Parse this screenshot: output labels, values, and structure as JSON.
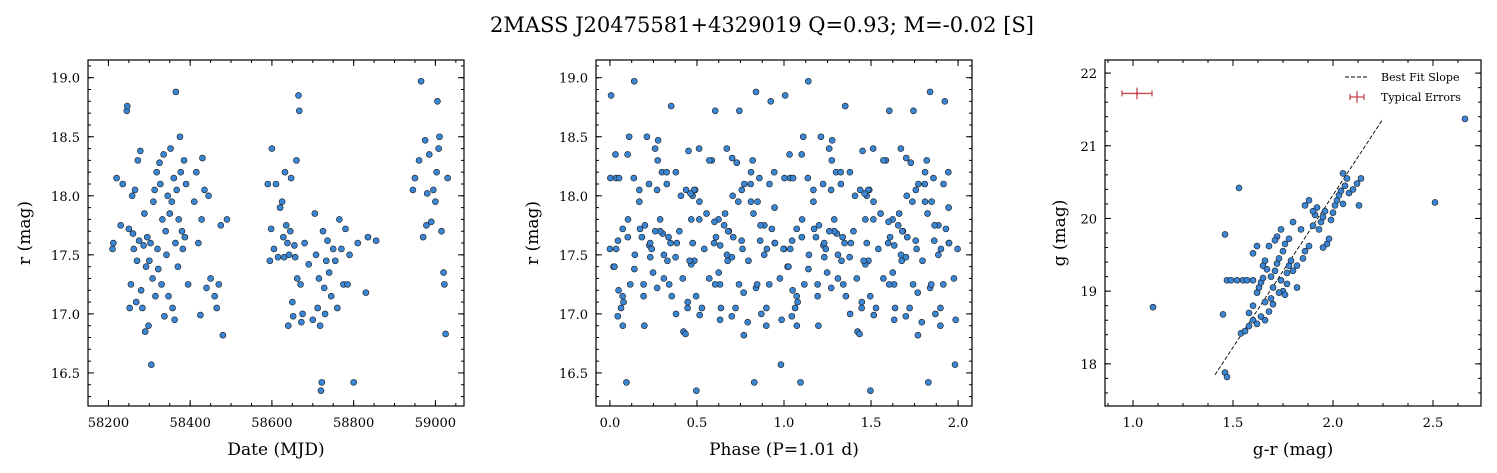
{
  "chart_data": {
    "title": "2MASS J20475581+4329019  Q=0.93; M=-0.02 [S]",
    "panels": [
      {
        "type": "scatter",
        "xlabel": "Date (MJD)",
        "ylabel": "r (mag)",
        "xlim": [
          58150,
          59070
        ],
        "ylim": [
          19.15,
          16.22
        ],
        "xticks": [
          58200,
          58400,
          58600,
          58800,
          59000
        ],
        "xtick_labels": [
          "58200",
          "58400",
          "58600",
          "58800",
          "59000"
        ],
        "yticks": [
          16.5,
          17.0,
          17.5,
          18.0,
          18.5,
          19.0
        ],
        "ytick_labels": [
          "16.5",
          "17.0",
          "17.5",
          "18.0",
          "18.5",
          "19.0"
        ],
        "points": [
          [
            58210,
            17.55
          ],
          [
            58212,
            17.6
          ],
          [
            58220,
            18.15
          ],
          [
            58230,
            17.75
          ],
          [
            58235,
            18.1
          ],
          [
            58245,
            18.72
          ],
          [
            58246,
            18.76
          ],
          [
            58250,
            17.72
          ],
          [
            58252,
            17.05
          ],
          [
            58255,
            17.25
          ],
          [
            58258,
            18.0
          ],
          [
            58260,
            17.68
          ],
          [
            58262,
            17.55
          ],
          [
            58265,
            18.05
          ],
          [
            58268,
            17.1
          ],
          [
            58270,
            17.45
          ],
          [
            58272,
            18.3
          ],
          [
            58275,
            17.62
          ],
          [
            58278,
            18.38
          ],
          [
            58280,
            17.2
          ],
          [
            58283,
            17.05
          ],
          [
            58286,
            17.58
          ],
          [
            58288,
            17.85
          ],
          [
            58290,
            16.85
          ],
          [
            58292,
            17.4
          ],
          [
            58295,
            17.65
          ],
          [
            58298,
            16.9
          ],
          [
            58300,
            17.45
          ],
          [
            58303,
            17.6
          ],
          [
            58305,
            16.57
          ],
          [
            58308,
            17.3
          ],
          [
            58310,
            17.95
          ],
          [
            58313,
            18.05
          ],
          [
            58315,
            17.15
          ],
          [
            58318,
            18.2
          ],
          [
            58320,
            17.55
          ],
          [
            58322,
            17.38
          ],
          [
            58325,
            18.28
          ],
          [
            58327,
            18.1
          ],
          [
            58330,
            17.25
          ],
          [
            58332,
            17.8
          ],
          [
            58335,
            18.35
          ],
          [
            58337,
            16.98
          ],
          [
            58340,
            17.7
          ],
          [
            58342,
            17.5
          ],
          [
            58345,
            18.0
          ],
          [
            58347,
            17.15
          ],
          [
            58350,
            17.85
          ],
          [
            58352,
            18.4
          ],
          [
            58355,
            17.95
          ],
          [
            58357,
            17.05
          ],
          [
            58360,
            18.15
          ],
          [
            58362,
            16.95
          ],
          [
            58364,
            17.6
          ],
          [
            58365,
            18.88
          ],
          [
            58367,
            18.05
          ],
          [
            58370,
            17.4
          ],
          [
            58372,
            17.8
          ],
          [
            58375,
            18.5
          ],
          [
            58377,
            18.2
          ],
          [
            58380,
            17.7
          ],
          [
            58382,
            17.55
          ],
          [
            58385,
            18.3
          ],
          [
            58387,
            17.65
          ],
          [
            58390,
            18.1
          ],
          [
            58395,
            17.25
          ],
          [
            58410,
            17.95
          ],
          [
            58415,
            18.2
          ],
          [
            58420,
            17.6
          ],
          [
            58425,
            16.99
          ],
          [
            58428,
            17.8
          ],
          [
            58430,
            18.32
          ],
          [
            58435,
            18.05
          ],
          [
            58440,
            17.22
          ],
          [
            58445,
            18.0
          ],
          [
            58450,
            17.3
          ],
          [
            58460,
            17.15
          ],
          [
            58465,
            17.05
          ],
          [
            58470,
            17.25
          ],
          [
            58475,
            17.75
          ],
          [
            58480,
            16.82
          ],
          [
            58490,
            17.8
          ],
          [
            58590,
            18.1
          ],
          [
            58595,
            17.45
          ],
          [
            58598,
            17.72
          ],
          [
            58600,
            18.4
          ],
          [
            58605,
            17.55
          ],
          [
            58610,
            18.1
          ],
          [
            58615,
            17.48
          ],
          [
            58620,
            17.9
          ],
          [
            58625,
            17.95
          ],
          [
            58628,
            17.65
          ],
          [
            58630,
            17.48
          ],
          [
            58632,
            18.2
          ],
          [
            58635,
            17.75
          ],
          [
            58638,
            17.6
          ],
          [
            58640,
            16.9
          ],
          [
            58642,
            17.5
          ],
          [
            58645,
            17.7
          ],
          [
            58647,
            18.15
          ],
          [
            58650,
            17.1
          ],
          [
            58652,
            16.98
          ],
          [
            58655,
            17.58
          ],
          [
            58657,
            17.48
          ],
          [
            58660,
            18.3
          ],
          [
            58662,
            17.3
          ],
          [
            58665,
            18.85
          ],
          [
            58667,
            18.72
          ],
          [
            58670,
            17.25
          ],
          [
            58672,
            16.93
          ],
          [
            58675,
            17.0
          ],
          [
            58680,
            17.6
          ],
          [
            58690,
            17.42
          ],
          [
            58700,
            16.95
          ],
          [
            58705,
            17.85
          ],
          [
            58708,
            17.5
          ],
          [
            58712,
            17.05
          ],
          [
            58715,
            17.3
          ],
          [
            58718,
            16.9
          ],
          [
            58720,
            16.35
          ],
          [
            58722,
            16.42
          ],
          [
            58725,
            17.7
          ],
          [
            58728,
            17.22
          ],
          [
            58730,
            17.0
          ],
          [
            58733,
            17.45
          ],
          [
            58736,
            17.62
          ],
          [
            58740,
            17.35
          ],
          [
            58745,
            17.15
          ],
          [
            58750,
            17.55
          ],
          [
            58755,
            17.45
          ],
          [
            58760,
            17.05
          ],
          [
            58765,
            17.8
          ],
          [
            58770,
            17.55
          ],
          [
            58775,
            17.25
          ],
          [
            58780,
            17.72
          ],
          [
            58785,
            17.25
          ],
          [
            58790,
            17.5
          ],
          [
            58800,
            16.42
          ],
          [
            58810,
            17.6
          ],
          [
            58830,
            17.18
          ],
          [
            58835,
            17.65
          ],
          [
            58855,
            17.62
          ],
          [
            58945,
            18.05
          ],
          [
            58950,
            18.15
          ],
          [
            58960,
            18.3
          ],
          [
            58965,
            18.97
          ],
          [
            58970,
            17.65
          ],
          [
            58975,
            18.47
          ],
          [
            58978,
            17.75
          ],
          [
            58980,
            18.02
          ],
          [
            58985,
            18.35
          ],
          [
            58990,
            17.78
          ],
          [
            58995,
            18.05
          ],
          [
            59000,
            17.95
          ],
          [
            59003,
            18.2
          ],
          [
            59005,
            18.8
          ],
          [
            59008,
            18.4
          ],
          [
            59010,
            18.5
          ],
          [
            59015,
            17.7
          ],
          [
            59020,
            17.35
          ],
          [
            59022,
            17.25
          ],
          [
            59025,
            16.83
          ],
          [
            59030,
            18.15
          ]
        ]
      },
      {
        "type": "scatter",
        "xlabel": "Phase (P=1.01 d)",
        "ylabel": "r (mag)",
        "xlim": [
          -0.08,
          2.08
        ],
        "ylim": [
          19.15,
          16.22
        ],
        "xticks": [
          0.0,
          0.5,
          1.0,
          1.5,
          2.0
        ],
        "xtick_labels": [
          "0.0",
          "0.5",
          "1.0",
          "1.5",
          "2.0"
        ],
        "yticks": [
          16.5,
          17.0,
          17.5,
          18.0,
          18.5,
          19.0
        ],
        "ytick_labels": [
          "16.5",
          "17.0",
          "17.5",
          "18.0",
          "18.5",
          "19.0"
        ],
        "points": []
      },
      {
        "type": "scatter",
        "xlabel": "g-r (mag)",
        "ylabel": "g (mag)",
        "xlim": [
          0.86,
          2.74
        ],
        "ylim": [
          22.18,
          17.42
        ],
        "xticks": [
          1.0,
          1.5,
          2.0,
          2.5
        ],
        "xtick_labels": [
          "1.0",
          "1.5",
          "2.0",
          "2.5"
        ],
        "yticks": [
          18,
          19,
          20,
          21,
          22
        ],
        "ytick_labels": [
          "18",
          "19",
          "20",
          "21",
          "22"
        ],
        "fit_line": [
          [
            1.41,
            17.85
          ],
          [
            2.25,
            21.37
          ]
        ],
        "typical_error": {
          "x": 1.02,
          "y": 21.72,
          "xerr": 0.075,
          "yerr": 0.08
        },
        "legend": [
          "Best Fit Slope",
          "Typical Errors"
        ],
        "points": [
          [
            1.46,
            17.88
          ],
          [
            1.47,
            17.82
          ],
          [
            1.1,
            18.78
          ],
          [
            1.45,
            18.68
          ],
          [
            1.46,
            19.78
          ],
          [
            1.47,
            19.15
          ],
          [
            1.49,
            19.15
          ],
          [
            1.52,
            19.15
          ],
          [
            1.53,
            20.42
          ],
          [
            1.55,
            19.15
          ],
          [
            1.57,
            19.15
          ],
          [
            1.6,
            19.15
          ],
          [
            1.54,
            18.42
          ],
          [
            1.56,
            18.45
          ],
          [
            1.58,
            18.52
          ],
          [
            1.6,
            18.6
          ],
          [
            1.62,
            18.55
          ],
          [
            1.64,
            18.65
          ],
          [
            1.66,
            18.6
          ],
          [
            1.6,
            18.8
          ],
          [
            1.62,
            18.98
          ],
          [
            1.63,
            19.05
          ],
          [
            1.64,
            19.12
          ],
          [
            1.65,
            19.18
          ],
          [
            1.65,
            19.35
          ],
          [
            1.66,
            19.42
          ],
          [
            1.67,
            19.3
          ],
          [
            1.68,
            18.72
          ],
          [
            1.69,
            18.9
          ],
          [
            1.7,
            19.05
          ],
          [
            1.71,
            19.28
          ],
          [
            1.72,
            19.38
          ],
          [
            1.73,
            19.45
          ],
          [
            1.74,
            19.15
          ],
          [
            1.75,
            19.0
          ],
          [
            1.76,
            18.95
          ],
          [
            1.77,
            19.25
          ],
          [
            1.78,
            19.35
          ],
          [
            1.79,
            19.42
          ],
          [
            1.7,
            18.82
          ],
          [
            1.72,
            19.75
          ],
          [
            1.74,
            19.85
          ],
          [
            1.75,
            19.55
          ],
          [
            1.76,
            19.65
          ],
          [
            1.78,
            19.72
          ],
          [
            1.8,
            19.28
          ],
          [
            1.82,
            19.35
          ],
          [
            1.84,
            19.85
          ],
          [
            1.85,
            19.45
          ],
          [
            1.86,
            19.55
          ],
          [
            1.88,
            19.62
          ],
          [
            1.9,
            19.9
          ],
          [
            1.91,
            20.05
          ],
          [
            1.92,
            20.15
          ],
          [
            1.93,
            19.85
          ],
          [
            1.94,
            19.95
          ],
          [
            1.95,
            20.02
          ],
          [
            1.96,
            20.1
          ],
          [
            1.97,
            19.65
          ],
          [
            1.98,
            19.72
          ],
          [
            1.99,
            19.98
          ],
          [
            2.0,
            20.08
          ],
          [
            2.01,
            20.18
          ],
          [
            2.02,
            20.25
          ],
          [
            2.03,
            20.32
          ],
          [
            2.04,
            20.38
          ],
          [
            2.05,
            20.2
          ],
          [
            2.06,
            20.45
          ],
          [
            2.07,
            20.55
          ],
          [
            2.08,
            20.35
          ],
          [
            2.1,
            20.4
          ],
          [
            2.12,
            20.48
          ],
          [
            2.13,
            20.18
          ],
          [
            2.14,
            20.55
          ],
          [
            1.86,
            20.18
          ],
          [
            1.88,
            20.25
          ],
          [
            1.9,
            20.1
          ],
          [
            1.8,
            19.95
          ],
          [
            1.82,
            19.05
          ],
          [
            1.95,
            19.6
          ],
          [
            2.05,
            20.62
          ],
          [
            1.6,
            19.52
          ],
          [
            1.62,
            19.62
          ],
          [
            1.68,
            19.62
          ],
          [
            1.71,
            19.7
          ],
          [
            1.58,
            18.7
          ],
          [
            1.66,
            18.85
          ],
          [
            1.69,
            19.2
          ],
          [
            1.73,
            18.98
          ],
          [
            1.77,
            19.1
          ],
          [
            2.51,
            20.22
          ],
          [
            2.66,
            21.37
          ]
        ]
      }
    ]
  }
}
